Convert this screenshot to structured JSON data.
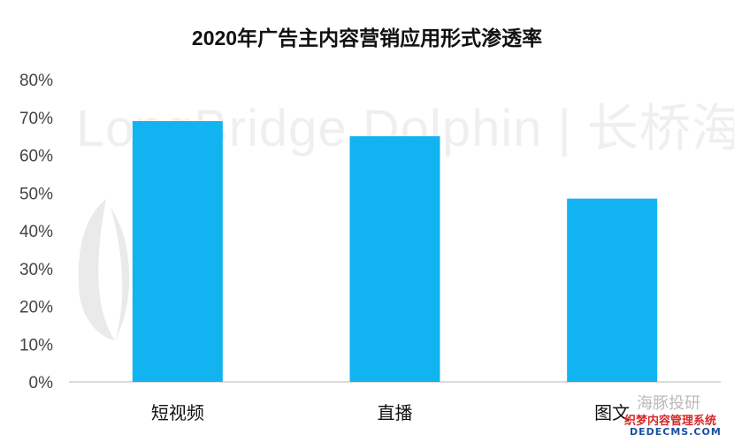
{
  "watermark": {
    "text": "LongBridge Dolphin | 长桥海豚投研"
  },
  "corner": {
    "line1": "海豚投研",
    "line2": "织梦内容管理系统",
    "line3": "DEDECMS.COM"
  },
  "colors": {
    "bar": "#11b3f0",
    "axis": "#cfcfcf"
  },
  "chart_data": {
    "type": "bar",
    "title": "2020年广告主内容营销应用形式渗透率",
    "categories": [
      "短视频",
      "直播",
      "图文"
    ],
    "values": [
      69,
      65,
      48.5
    ],
    "ylim": [
      0,
      80
    ],
    "yticks": [
      "0%",
      "10%",
      "20%",
      "30%",
      "40%",
      "50%",
      "60%",
      "70%",
      "80%"
    ],
    "grid": false,
    "legend": "none"
  }
}
